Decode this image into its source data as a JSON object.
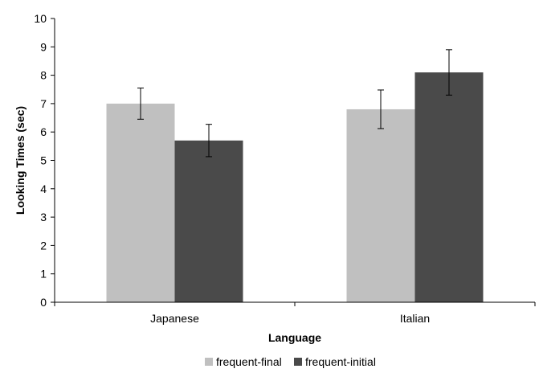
{
  "chart_data": {
    "type": "bar",
    "categories": [
      "Japanese",
      "Italian"
    ],
    "series": [
      {
        "name": "frequent-final",
        "color": "#c0c0c0",
        "values": [
          7.0,
          6.8
        ],
        "errors": [
          0.55,
          0.68
        ]
      },
      {
        "name": "frequent-initial",
        "color": "#4a4a4a",
        "values": [
          5.7,
          8.1
        ],
        "errors": [
          0.57,
          0.8
        ]
      }
    ],
    "xlabel": "Language",
    "ylabel": "Looking Times (sec)",
    "ylim": [
      0,
      10
    ],
    "yticks": [
      "0",
      "1",
      "2",
      "3",
      "4",
      "5",
      "6",
      "7",
      "8",
      "9",
      "10"
    ],
    "grid": false,
    "legend": "bottom"
  }
}
